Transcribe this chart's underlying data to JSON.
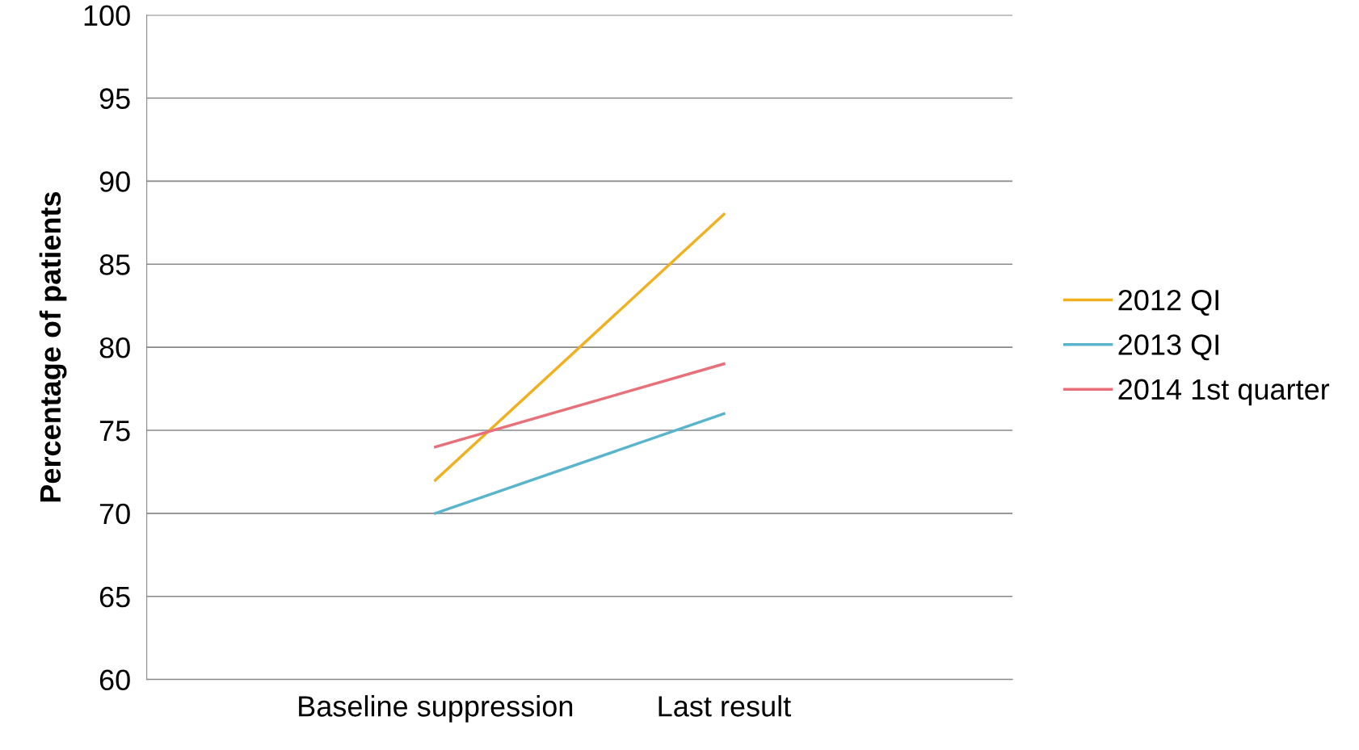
{
  "chart_data": {
    "type": "line",
    "ylabel": "Percentage of patients",
    "categories": [
      "Baseline suppression",
      "Last result"
    ],
    "series": [
      {
        "name": "2012 QI",
        "color": "#f0b020",
        "values": [
          72,
          88
        ]
      },
      {
        "name": "2013 QI",
        "color": "#5ab4cc",
        "values": [
          70,
          76
        ]
      },
      {
        "name": "2014 1st quarter",
        "color": "#e8707a",
        "values": [
          74,
          79
        ]
      }
    ],
    "ylim": [
      60,
      100
    ],
    "yticks": [
      60,
      65,
      70,
      75,
      80,
      85,
      90,
      95,
      100
    ],
    "grid": "y",
    "legend": "right",
    "marker": "none",
    "line_style": "solid"
  }
}
